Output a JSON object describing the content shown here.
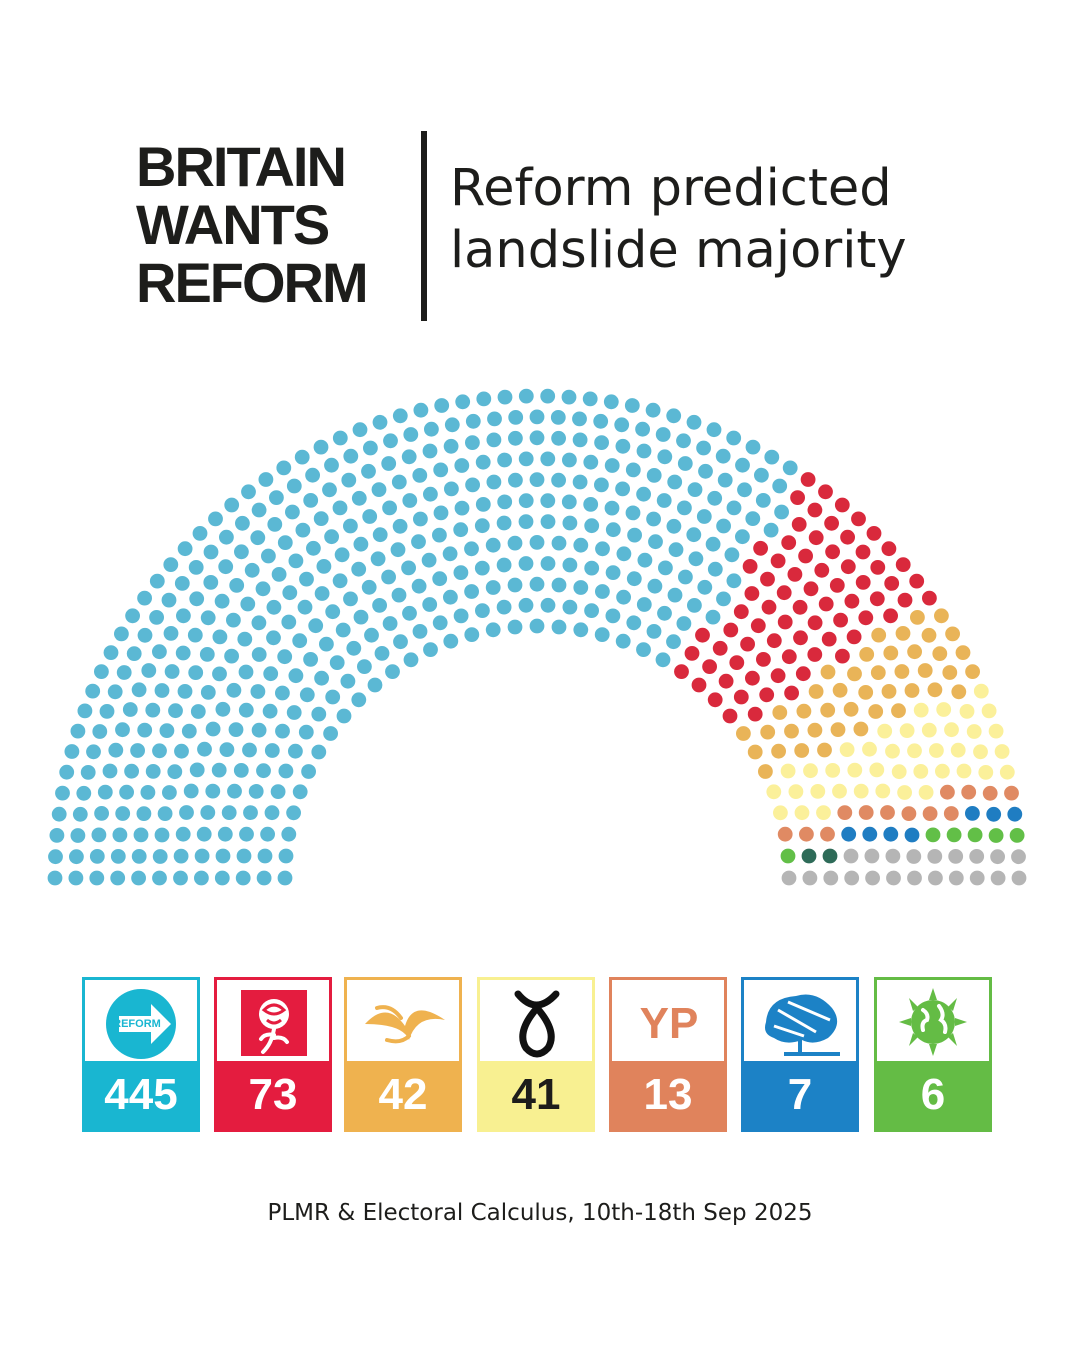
{
  "brand": {
    "lines": [
      "BRITAIN",
      "WANTS",
      "REFORM"
    ]
  },
  "headline": {
    "lines": [
      "Reform predicted",
      "landslide majority"
    ]
  },
  "source": "PLMR & Electoral Calculus, 10th-18th Sep 2025",
  "chart_data": {
    "type": "parliament",
    "total_seats": 650,
    "parties": [
      {
        "id": "reform",
        "logo_text": "REFORM UK",
        "seats": 445,
        "color": "#5bb8d4",
        "card_color": "#19b6d1",
        "icon": "reform-arrow-icon"
      },
      {
        "id": "labour",
        "seats": 73,
        "color": "#d9293c",
        "card_color": "#e41c3f",
        "icon": "labour-rose-icon"
      },
      {
        "id": "libdem",
        "seats": 42,
        "color": "#e9b458",
        "card_color": "#efb24f",
        "icon": "libdem-bird-icon"
      },
      {
        "id": "snp",
        "seats": 41,
        "color": "#fbf09a",
        "card_color": "#f8f091",
        "count_color": "#1d1d1b",
        "icon": "snp-saltire-icon"
      },
      {
        "id": "yourparty",
        "logo_text": "YP",
        "seats": 13,
        "color": "#e08a63",
        "card_color": "#e0835c",
        "icon": "yp-text-icon"
      },
      {
        "id": "conservative",
        "seats": 7,
        "color": "#1f7dc2",
        "card_color": "#1c82c6",
        "icon": "conservative-tree-icon"
      },
      {
        "id": "green",
        "seats": 6,
        "color": "#62bf47",
        "card_color": "#64bc45",
        "icon": "green-globe-icon"
      }
    ],
    "unshown_seats": [
      {
        "seats": 2,
        "color": "#2e6b58"
      },
      {
        "seats": 21,
        "color": "#b5b5b5"
      }
    ]
  }
}
